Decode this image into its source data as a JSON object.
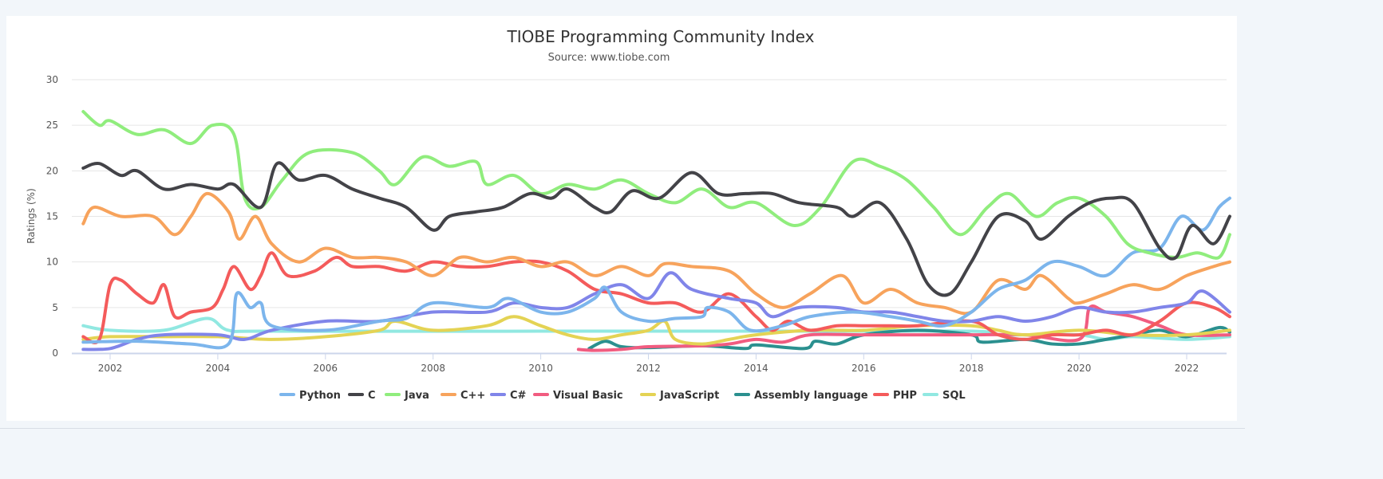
{
  "chart_data": {
    "type": "line",
    "title": "TIOBE Programming Community Index",
    "subtitle": "Source: www.tiobe.com",
    "ylabel": "Ratings (%)",
    "xlabel": "",
    "ylim": [
      0,
      30
    ],
    "xlim": [
      2001.3,
      2022.9
    ],
    "yticks": [
      "0",
      "5",
      "10",
      "15",
      "20",
      "25",
      "30"
    ],
    "xticks": [
      "2002",
      "2004",
      "2006",
      "2008",
      "2010",
      "2012",
      "2014",
      "2016",
      "2018",
      "2020",
      "2022"
    ],
    "grid": true,
    "legend": "bottom",
    "series": [
      {
        "name": "Python",
        "color": "#7cb5ec",
        "x": [
          2001.5,
          2002.5,
          2003.5,
          2004.2,
          2004.35,
          2004.6,
          2004.8,
          2005,
          2006,
          2007,
          2007.5,
          2008,
          2009,
          2009.4,
          2010,
          2010.5,
          2011,
          2011.2,
          2011.5,
          2012,
          2012.5,
          2013,
          2013.1,
          2013.5,
          2013.9,
          2014.5,
          2015,
          2015.8,
          2016.5,
          2017,
          2017.5,
          2018,
          2018.5,
          2019,
          2019.5,
          2020,
          2020.5,
          2021,
          2021.5,
          2021.9,
          2022.3,
          2022.6,
          2022.8
        ],
        "y": [
          1.2,
          1.3,
          1,
          1,
          6.5,
          5,
          5.5,
          3,
          2.5,
          3.5,
          3.8,
          5.5,
          5,
          6,
          4.5,
          4.5,
          6,
          7.2,
          4.5,
          3.5,
          3.8,
          4,
          5,
          4.5,
          2.5,
          3,
          4,
          4.5,
          4,
          3.5,
          3,
          4.5,
          7,
          8,
          10,
          9.5,
          8.5,
          11,
          11.5,
          15,
          13.5,
          16,
          17
        ]
      },
      {
        "name": "C",
        "color": "#434348",
        "x": [
          2001.5,
          2001.8,
          2002.2,
          2002.5,
          2003,
          2003.5,
          2004,
          2004.3,
          2004.8,
          2005.1,
          2005.5,
          2006,
          2006.5,
          2007,
          2007.5,
          2008,
          2008.3,
          2008.8,
          2009.3,
          2009.8,
          2010.2,
          2010.5,
          2011,
          2011.3,
          2011.7,
          2012.2,
          2012.8,
          2013.3,
          2013.8,
          2014.3,
          2014.8,
          2015.5,
          2015.8,
          2016.3,
          2016.8,
          2017.2,
          2017.6,
          2018,
          2018.5,
          2019,
          2019.3,
          2019.8,
          2020.2,
          2020.6,
          2021,
          2021.5,
          2021.8,
          2022.1,
          2022.5,
          2022.8
        ],
        "y": [
          20.3,
          20.8,
          19.5,
          20,
          18,
          18.5,
          18,
          18.5,
          16,
          20.8,
          19,
          19.5,
          18,
          17,
          16,
          13.5,
          15,
          15.5,
          16,
          17.5,
          17,
          18,
          16,
          15.5,
          17.8,
          17,
          19.8,
          17.5,
          17.5,
          17.5,
          16.5,
          16,
          15,
          16.5,
          12.5,
          7.5,
          6.5,
          10,
          15,
          14.5,
          12.5,
          15,
          16.5,
          17,
          16.5,
          11.5,
          10.5,
          14,
          12,
          15
        ]
      },
      {
        "name": "Java",
        "color": "#90ed7d",
        "x": [
          2001.5,
          2001.8,
          2002,
          2002.5,
          2003,
          2003.5,
          2003.9,
          2004.3,
          2004.5,
          2004.8,
          2005.2,
          2005.7,
          2006.5,
          2007,
          2007.3,
          2007.8,
          2008.3,
          2008.8,
          2009,
          2009.5,
          2010,
          2010.5,
          2011,
          2011.5,
          2012,
          2012.5,
          2013,
          2013.5,
          2014,
          2014.7,
          2015.2,
          2015.8,
          2016.3,
          2016.8,
          2017.3,
          2017.8,
          2018.3,
          2018.7,
          2019.2,
          2019.6,
          2020,
          2020.5,
          2020.9,
          2021.3,
          2021.8,
          2022.2,
          2022.6,
          2022.8
        ],
        "y": [
          26.5,
          25,
          25.5,
          24,
          24.5,
          23,
          25,
          24,
          17,
          16,
          19,
          22,
          22,
          20,
          18.5,
          21.5,
          20.5,
          21,
          18.5,
          19.5,
          17.5,
          18.5,
          18,
          19,
          17.5,
          16.5,
          18,
          16,
          16.5,
          14,
          16,
          21,
          20.5,
          19,
          16,
          13,
          16,
          17.5,
          15,
          16.5,
          17,
          15,
          12,
          11,
          10.5,
          11,
          10.5,
          13
        ]
      },
      {
        "name": "C++",
        "color": "#f7a35c",
        "x": [
          2001.5,
          2001.7,
          2002.2,
          2002.8,
          2003.2,
          2003.5,
          2003.8,
          2004.2,
          2004.4,
          2004.7,
          2005,
          2005.5,
          2006,
          2006.5,
          2007,
          2007.5,
          2008,
          2008.5,
          2009,
          2009.5,
          2010,
          2010.5,
          2011,
          2011.5,
          2012,
          2012.3,
          2012.8,
          2013.5,
          2014,
          2014.5,
          2015,
          2015.6,
          2016,
          2016.5,
          2017,
          2017.5,
          2018,
          2018.5,
          2019,
          2019.3,
          2019.8,
          2020,
          2020.5,
          2021,
          2021.5,
          2022,
          2022.5,
          2022.8
        ],
        "y": [
          14.2,
          16,
          15,
          15,
          13,
          15,
          17.5,
          15.5,
          12.5,
          15,
          12,
          10,
          11.5,
          10.5,
          10.5,
          10,
          8.5,
          10.5,
          10,
          10.5,
          9.5,
          10,
          8.5,
          9.5,
          8.5,
          9.8,
          9.5,
          9,
          6.5,
          5,
          6.5,
          8.5,
          5.5,
          7,
          5.5,
          5,
          4.5,
          8,
          7,
          8.5,
          6,
          5.5,
          6.5,
          7.5,
          7,
          8.5,
          9.5,
          10
        ]
      },
      {
        "name": "C#",
        "color": "#8085e9",
        "x": [
          2001.5,
          2002,
          2002.5,
          2003,
          2004,
          2004.5,
          2005,
          2006,
          2007,
          2008,
          2009,
          2009.5,
          2010,
          2010.5,
          2011,
          2011.5,
          2012,
          2012.4,
          2012.8,
          2013.5,
          2014,
          2014.3,
          2014.8,
          2015.5,
          2016,
          2016.5,
          2017,
          2017.5,
          2018,
          2018.5,
          2019,
          2019.5,
          2020,
          2020.5,
          2021,
          2021.5,
          2022,
          2022.3,
          2022.8
        ],
        "y": [
          0.4,
          0.5,
          1.5,
          2,
          2,
          1.5,
          2.5,
          3.5,
          3.5,
          4.5,
          4.5,
          5.5,
          5,
          5,
          6.5,
          7.5,
          6,
          8.8,
          7,
          6,
          5.5,
          4,
          5,
          5,
          4.5,
          4.5,
          4,
          3.5,
          3.5,
          4,
          3.5,
          4,
          5,
          4.5,
          4.5,
          5,
          5.5,
          6.8,
          4.5
        ]
      },
      {
        "name": "Visual Basic",
        "color": "#f15c80",
        "x": [
          2010.7,
          2011,
          2011.5,
          2012,
          2013,
          2013.5,
          2014,
          2014.5,
          2015,
          2016,
          2017,
          2018,
          2019,
          2020,
          2020.2,
          2020.5,
          2021,
          2021.5,
          2022,
          2022.8
        ],
        "y": [
          0.4,
          0.3,
          0.4,
          0.7,
          0.8,
          1,
          1.5,
          1.2,
          2,
          2,
          2,
          2,
          2,
          1.5,
          5,
          4.5,
          4,
          3,
          2,
          2
        ]
      },
      {
        "name": "JavaScript",
        "color": "#e4d354",
        "x": [
          2001.5,
          2002,
          2003,
          2004,
          2005,
          2006,
          2007,
          2007.3,
          2008,
          2009,
          2009.5,
          2010,
          2010.5,
          2011,
          2011.5,
          2012,
          2012.3,
          2012.5,
          2013,
          2013.5,
          2014,
          2015,
          2016,
          2017,
          2018,
          2018.5,
          2019,
          2020,
          2021,
          2022,
          2022.8
        ],
        "y": [
          1.5,
          1.8,
          1.8,
          1.8,
          1.5,
          1.8,
          2.5,
          3.5,
          2.5,
          3,
          4,
          3,
          2,
          1.5,
          2,
          2.5,
          3.5,
          1.5,
          1,
          1.5,
          2,
          2.5,
          2.5,
          3,
          3,
          2.5,
          2,
          2.5,
          2,
          2,
          2.5
        ]
      },
      {
        "name": "Assembly language",
        "color": "#2b908f",
        "x": [
          2010.9,
          2011.2,
          2011.5,
          2012,
          2013,
          2013.8,
          2014,
          2014.9,
          2015.1,
          2015.5,
          2016,
          2017,
          2018,
          2018.2,
          2019,
          2019.5,
          2020,
          2020.5,
          2021,
          2021.5,
          2022,
          2022.6,
          2022.8
        ],
        "y": [
          0.5,
          1.3,
          0.7,
          0.6,
          0.8,
          0.5,
          0.9,
          0.5,
          1.3,
          1,
          2,
          2.5,
          2,
          1.2,
          1.5,
          1,
          1,
          1.5,
          2,
          2.5,
          1.8,
          2.8,
          2.3
        ]
      },
      {
        "name": "PHP",
        "color": "#f45b5b",
        "x": [
          2001.5,
          2001.8,
          2002,
          2002.2,
          2002.5,
          2002.8,
          2003,
          2003.2,
          2003.5,
          2003.9,
          2004.1,
          2004.3,
          2004.6,
          2004.8,
          2005,
          2005.3,
          2005.8,
          2006.2,
          2006.5,
          2007,
          2007.5,
          2008,
          2008.5,
          2009,
          2009.5,
          2010,
          2010.5,
          2011,
          2011.5,
          2012,
          2012.5,
          2013,
          2013.5,
          2014,
          2014.3,
          2014.6,
          2015,
          2015.5,
          2016,
          2016.5,
          2017,
          2018,
          2018.5,
          2019,
          2019.5,
          2020,
          2020.5,
          2021,
          2021.5,
          2022,
          2022.5,
          2022.8
        ],
        "y": [
          1.8,
          1.5,
          7.5,
          8,
          6.5,
          5.5,
          7.5,
          4,
          4.5,
          5,
          7,
          9.5,
          7,
          8.5,
          11,
          8.5,
          9,
          10.5,
          9.5,
          9.5,
          9,
          10,
          9.5,
          9.5,
          10,
          10,
          9,
          7,
          6.5,
          5.5,
          5.5,
          4.5,
          6.5,
          4,
          2.5,
          3.5,
          2.5,
          3,
          3,
          3,
          3,
          3.5,
          2,
          1.5,
          2,
          2,
          2.5,
          2,
          3.5,
          5.5,
          5,
          4
        ]
      },
      {
        "name": "SQL",
        "color": "#91e8e1",
        "x": [
          2001.5,
          2002,
          2003,
          2003.8,
          2004.2,
          2005,
          2010,
          2015,
          2018,
          2018.5,
          2019,
          2020,
          2020.5,
          2021,
          2022,
          2022.8
        ],
        "y": [
          3,
          2.5,
          2.5,
          3.8,
          2.5,
          2.4,
          2.4,
          2.4,
          2.4,
          2,
          2,
          2,
          1.5,
          1.8,
          1.5,
          1.8
        ]
      }
    ]
  }
}
